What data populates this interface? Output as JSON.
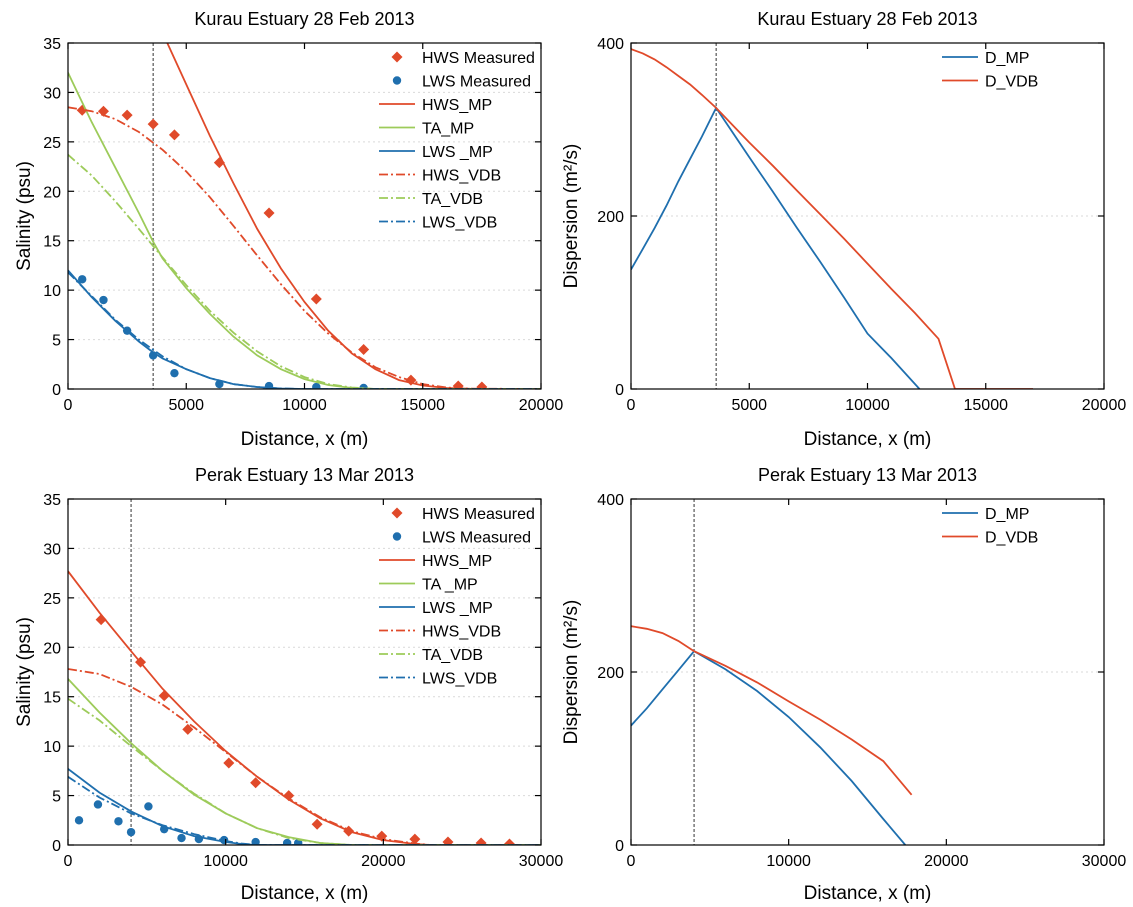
{
  "colors": {
    "hws": "#e04a2a",
    "ta": "#9dcb5a",
    "lws": "#1f6fae",
    "grid": "#d9d9d9"
  },
  "chart_data": [
    {
      "type": "scatter",
      "title": "Kurau Estuary 28 Feb 2013",
      "xlabel": "Distance, x (m)",
      "ylabel": "Salinity (psu)",
      "xlim": [
        0,
        20000
      ],
      "ylim": [
        0,
        35
      ],
      "xticks": [
        0,
        5000,
        10000,
        15000,
        20000
      ],
      "yticks": [
        0,
        5,
        10,
        15,
        20,
        25,
        30,
        35
      ],
      "xtick_labels": [
        "0",
        "5000",
        "10000",
        "15000",
        "20000"
      ],
      "ytick_labels": [
        "0",
        "5",
        "10",
        "15",
        "20",
        "25",
        "30",
        "35"
      ],
      "vline_x": 3600,
      "legend_position": "top-right",
      "grid": true,
      "series": [
        {
          "name": "HWS Measured",
          "kind": "diamond",
          "color": "#e04a2a",
          "x": [
            600,
            1500,
            2500,
            3600,
            4500,
            6400,
            8500,
            10500,
            12500,
            14500,
            16500,
            17500
          ],
          "y": [
            28.2,
            28.1,
            27.7,
            26.8,
            25.7,
            22.9,
            17.8,
            9.1,
            4.0,
            0.9,
            0.3,
            0.2
          ]
        },
        {
          "name": "LWS Measured",
          "kind": "circle",
          "color": "#1f6fae",
          "x": [
            600,
            1500,
            2500,
            3600,
            4500,
            6400,
            8500,
            10500,
            12500
          ],
          "y": [
            11.1,
            9.0,
            5.9,
            3.4,
            1.6,
            0.5,
            0.3,
            0.2,
            0.1
          ]
        },
        {
          "name": "HWS_MP",
          "kind": "solid",
          "color": "#e04a2a",
          "x": [
            4200,
            5000,
            6000,
            7000,
            8000,
            9000,
            10000,
            11000,
            12000,
            13000,
            14000,
            15000,
            16000,
            17000,
            18000,
            20000
          ],
          "y": [
            35,
            30.8,
            25.6,
            20.8,
            16.2,
            12.2,
            8.8,
            5.9,
            3.6,
            2.0,
            0.9,
            0.35,
            0.1,
            0.02,
            0,
            0
          ]
        },
        {
          "name": "TA_MP",
          "kind": "solid",
          "color": "#9dcb5a",
          "x": [
            0,
            500,
            1000,
            2000,
            3000,
            3600,
            4000,
            5000,
            6000,
            7000,
            8000,
            9000,
            10000,
            11000,
            12000,
            13000,
            20000
          ],
          "y": [
            32,
            29.5,
            27.0,
            22.4,
            17.8,
            14.9,
            13.2,
            10.2,
            7.6,
            5.3,
            3.4,
            2.0,
            1.0,
            0.4,
            0.1,
            0,
            0
          ]
        },
        {
          "name": "LWS _MP",
          "kind": "solid",
          "color": "#1f6fae",
          "x": [
            0,
            1000,
            2000,
            3000,
            3600,
            4000,
            5000,
            6000,
            7000,
            8000,
            9000,
            10000,
            20000
          ],
          "y": [
            12,
            9.3,
            6.9,
            4.8,
            3.7,
            3.1,
            2.0,
            1.1,
            0.5,
            0.2,
            0.05,
            0,
            0
          ]
        },
        {
          "name": "HWS_VDB",
          "kind": "dashdot",
          "color": "#e04a2a",
          "x": [
            0,
            1000,
            2000,
            3000,
            4000,
            5000,
            6000,
            7000,
            8000,
            9000,
            10000,
            11000,
            12000,
            13000,
            14000,
            15000,
            16000,
            17000,
            20000
          ],
          "y": [
            28.5,
            28.1,
            27.3,
            26.0,
            24.2,
            22.0,
            19.4,
            16.5,
            13.5,
            10.6,
            7.9,
            5.6,
            3.7,
            2.2,
            1.2,
            0.5,
            0.15,
            0.03,
            0
          ]
        },
        {
          "name": "TA_VDB",
          "kind": "dashdot",
          "color": "#9dcb5a",
          "x": [
            0,
            1000,
            2000,
            3000,
            4000,
            5000,
            6000,
            7000,
            8000,
            9000,
            10000,
            11000,
            12000,
            13000,
            20000
          ],
          "y": [
            23.7,
            21.6,
            19.0,
            16.2,
            13.3,
            10.5,
            7.9,
            5.7,
            3.8,
            2.3,
            1.2,
            0.5,
            0.15,
            0,
            0
          ]
        },
        {
          "name": "LWS_VDB",
          "kind": "dashdot",
          "color": "#1f6fae",
          "x": [
            0,
            1000,
            2000,
            3000,
            4000,
            5000,
            6000,
            7000,
            8000,
            9000,
            10000,
            20000
          ],
          "y": [
            11.8,
            9.4,
            7.0,
            5.0,
            3.3,
            2.0,
            1.1,
            0.5,
            0.2,
            0.05,
            0,
            0
          ]
        }
      ]
    },
    {
      "type": "line",
      "title": "Kurau Estuary 28 Feb 2013",
      "xlabel": "Distance, x (m)",
      "ylabel": "Dispersion (m²/s)",
      "xlim": [
        0,
        20000
      ],
      "ylim": [
        0,
        400
      ],
      "xticks": [
        0,
        5000,
        10000,
        15000,
        20000
      ],
      "yticks": [
        0,
        200,
        400
      ],
      "xtick_labels": [
        "0",
        "5000",
        "10000",
        "15000",
        "20000"
      ],
      "ytick_labels": [
        "0",
        "200",
        "400"
      ],
      "vline_x": 3600,
      "legend_position": "top-right",
      "grid": true,
      "series": [
        {
          "name": "D_MP",
          "kind": "solid",
          "color": "#1f6fae",
          "x": [
            0,
            500,
            1000,
            1500,
            2000,
            2500,
            3000,
            3600,
            5000,
            6000,
            7000,
            8000,
            9000,
            10000,
            11000,
            12200
          ],
          "y": [
            138,
            162,
            186,
            212,
            240,
            266,
            292,
            325,
            268,
            228,
            187,
            147,
            106,
            64,
            36,
            0
          ]
        },
        {
          "name": "D_VDB",
          "kind": "solid",
          "color": "#e04a2a",
          "x": [
            0,
            500,
            1000,
            1500,
            2000,
            2500,
            3000,
            3600,
            5000,
            6000,
            7000,
            8000,
            9000,
            10000,
            11000,
            12000,
            13000,
            13700,
            17000
          ],
          "y": [
            393,
            388,
            381,
            372,
            362,
            352,
            340,
            325,
            285,
            258,
            230,
            202,
            174,
            145,
            116,
            88,
            58,
            0,
            0
          ]
        }
      ]
    },
    {
      "type": "scatter",
      "title": "Perak Estuary 13 Mar 2013",
      "xlabel": "Distance, x (m)",
      "ylabel": "Salinity (psu)",
      "xlim": [
        0,
        30000
      ],
      "ylim": [
        0,
        35
      ],
      "xticks": [
        0,
        10000,
        20000,
        30000
      ],
      "yticks": [
        0,
        5,
        10,
        15,
        20,
        25,
        30,
        35
      ],
      "xtick_labels": [
        "0",
        "10000",
        "20000",
        "30000"
      ],
      "ytick_labels": [
        "0",
        "5",
        "10",
        "15",
        "20",
        "25",
        "30",
        "35"
      ],
      "vline_x": 4000,
      "legend_position": "top-right",
      "grid": true,
      "series": [
        {
          "name": "HWS Measured",
          "kind": "diamond",
          "color": "#e04a2a",
          "x": [
            2100,
            4600,
            6100,
            7600,
            10200,
            11900,
            14000,
            15800,
            17800,
            19900,
            22000,
            24100,
            26200,
            28000
          ],
          "y": [
            22.8,
            18.5,
            15.1,
            11.7,
            8.3,
            6.3,
            5.0,
            2.1,
            1.4,
            0.9,
            0.6,
            0.3,
            0.2,
            0.1
          ]
        },
        {
          "name": "LWS Measured",
          "kind": "circle",
          "color": "#1f6fae",
          "x": [
            700,
            1900,
            3200,
            4000,
            5100,
            6100,
            7200,
            8300,
            9900,
            11900,
            13900,
            14600
          ],
          "y": [
            2.5,
            4.1,
            2.4,
            1.3,
            3.9,
            1.6,
            0.7,
            0.6,
            0.5,
            0.3,
            0.2,
            0.2
          ]
        },
        {
          "name": "HWS_MP",
          "kind": "solid",
          "color": "#e04a2a",
          "x": [
            0,
            2000,
            4000,
            6000,
            8000,
            10000,
            12000,
            14000,
            16000,
            18000,
            20000,
            22000,
            23000,
            30000
          ],
          "y": [
            27.7,
            23.5,
            19.6,
            15.8,
            12.5,
            9.5,
            6.9,
            4.6,
            2.7,
            1.3,
            0.5,
            0.1,
            0,
            0
          ]
        },
        {
          "name": "TA _MP",
          "kind": "solid",
          "color": "#9dcb5a",
          "x": [
            0,
            2000,
            4000,
            6000,
            8000,
            10000,
            12000,
            14000,
            16000,
            18000,
            30000
          ],
          "y": [
            16.8,
            13.4,
            10.3,
            7.5,
            5.1,
            3.2,
            1.7,
            0.8,
            0.2,
            0,
            0
          ]
        },
        {
          "name": "LWS _MP",
          "kind": "solid",
          "color": "#1f6fae",
          "x": [
            0,
            2000,
            4000,
            6000,
            8000,
            10000,
            11000,
            12000,
            30000
          ],
          "y": [
            7.7,
            5.3,
            3.4,
            1.9,
            0.9,
            0.3,
            0.1,
            0,
            0
          ]
        },
        {
          "name": "HWS_VDB",
          "kind": "dashdot",
          "color": "#e04a2a",
          "x": [
            0,
            2000,
            4000,
            6000,
            8000,
            10000,
            12000,
            14000,
            16000,
            18000,
            20000,
            22000,
            23000,
            30000
          ],
          "y": [
            17.8,
            17.3,
            16.0,
            14.2,
            11.9,
            9.4,
            6.9,
            4.7,
            2.8,
            1.4,
            0.6,
            0.15,
            0,
            0
          ]
        },
        {
          "name": "TA_VDB",
          "kind": "dashdot",
          "color": "#9dcb5a",
          "x": [
            0,
            2000,
            4000,
            6000,
            8000,
            10000,
            12000,
            14000,
            16000,
            18000,
            30000
          ],
          "y": [
            14.8,
            12.6,
            10.0,
            7.5,
            5.2,
            3.2,
            1.7,
            0.7,
            0.2,
            0,
            0
          ]
        },
        {
          "name": "LWS_VDB",
          "kind": "dashdot",
          "color": "#1f6fae",
          "x": [
            0,
            2000,
            4000,
            6000,
            8000,
            10000,
            11000,
            12000,
            30000
          ],
          "y": [
            6.9,
            4.8,
            3.2,
            2.0,
            1.1,
            0.4,
            0.15,
            0,
            0
          ]
        }
      ]
    },
    {
      "type": "line",
      "title": "Perak Estuary 13 Mar 2013",
      "xlabel": "Distance, x (m)",
      "ylabel": "Dispersion (m²/s)",
      "xlim": [
        0,
        30000
      ],
      "ylim": [
        0,
        400
      ],
      "xticks": [
        0,
        10000,
        20000,
        30000
      ],
      "yticks": [
        0,
        200,
        400
      ],
      "xtick_labels": [
        "0",
        "10000",
        "20000",
        "30000"
      ],
      "ytick_labels": [
        "0",
        "200",
        "400"
      ],
      "vline_x": 4000,
      "legend_position": "top-right",
      "grid": true,
      "series": [
        {
          "name": "D_MP",
          "kind": "solid",
          "color": "#1f6fae",
          "x": [
            0,
            1000,
            2000,
            3000,
            4000,
            6000,
            8000,
            10000,
            12000,
            14000,
            16000,
            17400
          ],
          "y": [
            138,
            158,
            180,
            202,
            224,
            203,
            178,
            148,
            113,
            74,
            30,
            0
          ]
        },
        {
          "name": "D_VDB",
          "kind": "solid",
          "color": "#e04a2a",
          "x": [
            0,
            1000,
            2000,
            3000,
            4000,
            6000,
            8000,
            10000,
            12000,
            14000,
            16000,
            17800
          ],
          "y": [
            253,
            250,
            245,
            236,
            224,
            207,
            188,
            166,
            145,
            122,
            97,
            58
          ]
        }
      ]
    }
  ]
}
